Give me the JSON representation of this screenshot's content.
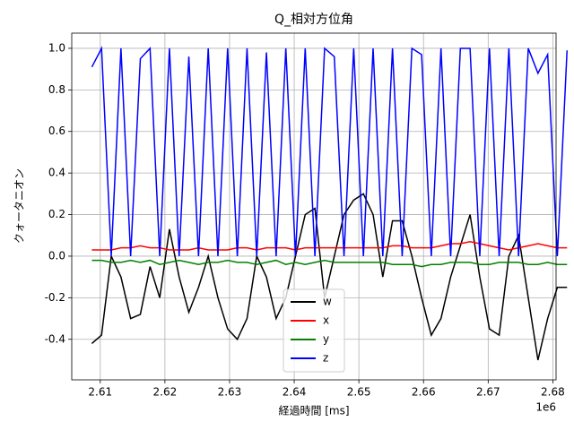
{
  "chart_data": {
    "type": "line",
    "title": "Q_相対方位角",
    "xlabel": "経過時間 [ms]",
    "ylabel": "クォータニオン",
    "x_offset_label": "1e6",
    "x": [
      2608700,
      2610200,
      2611700,
      2613200,
      2614700,
      2616200,
      2617700,
      2619200,
      2620700,
      2622200,
      2623700,
      2625200,
      2626700,
      2628200,
      2629700,
      2631200,
      2632700,
      2634200,
      2635700,
      2637200,
      2638700,
      2640200,
      2641700,
      2643200,
      2644700,
      2646200,
      2647700,
      2649200,
      2650700,
      2652200,
      2653700,
      2655200,
      2656700,
      2658200,
      2659700,
      2661200,
      2662700,
      2664200,
      2665700,
      2667200,
      2668700,
      2670200,
      2671700,
      2673200,
      2674700,
      2676200,
      2677700,
      2679200,
      2680700,
      2682200
    ],
    "series": [
      {
        "name": "w",
        "color": "#000000",
        "values": [
          -0.42,
          -0.38,
          0.0,
          -0.1,
          -0.3,
          -0.28,
          -0.05,
          -0.2,
          0.13,
          -0.1,
          -0.27,
          -0.15,
          0.0,
          -0.2,
          -0.35,
          -0.4,
          -0.3,
          0.0,
          -0.1,
          -0.3,
          -0.2,
          0.0,
          0.2,
          0.23,
          -0.2,
          0.0,
          0.2,
          0.27,
          0.3,
          0.2,
          -0.1,
          0.17,
          0.17,
          0.0,
          -0.2,
          -0.38,
          -0.3,
          -0.1,
          0.05,
          0.2,
          -0.1,
          -0.35,
          -0.38,
          0.0,
          0.1,
          -0.2,
          -0.5,
          -0.3,
          -0.15,
          -0.15
        ]
      },
      {
        "name": "x",
        "color": "#ff0000",
        "values": [
          0.03,
          0.03,
          0.03,
          0.04,
          0.04,
          0.05,
          0.04,
          0.04,
          0.03,
          0.03,
          0.03,
          0.04,
          0.03,
          0.03,
          0.03,
          0.04,
          0.04,
          0.03,
          0.04,
          0.04,
          0.04,
          0.03,
          0.04,
          0.04,
          0.04,
          0.04,
          0.04,
          0.04,
          0.04,
          0.04,
          0.04,
          0.05,
          0.05,
          0.04,
          0.04,
          0.04,
          0.05,
          0.06,
          0.06,
          0.07,
          0.06,
          0.05,
          0.04,
          0.03,
          0.04,
          0.05,
          0.06,
          0.05,
          0.04,
          0.04
        ]
      },
      {
        "name": "y",
        "color": "#008000",
        "values": [
          -0.02,
          -0.02,
          -0.03,
          -0.03,
          -0.02,
          -0.03,
          -0.02,
          -0.04,
          -0.03,
          -0.02,
          -0.03,
          -0.04,
          -0.03,
          -0.03,
          -0.02,
          -0.03,
          -0.03,
          -0.04,
          -0.03,
          -0.02,
          -0.04,
          -0.03,
          -0.04,
          -0.03,
          -0.02,
          -0.03,
          -0.03,
          -0.03,
          -0.03,
          -0.03,
          -0.03,
          -0.04,
          -0.04,
          -0.04,
          -0.05,
          -0.04,
          -0.04,
          -0.03,
          -0.03,
          -0.03,
          -0.04,
          -0.04,
          -0.03,
          -0.03,
          -0.03,
          -0.04,
          -0.04,
          -0.03,
          -0.04,
          -0.04
        ]
      },
      {
        "name": "z",
        "color": "#0000ff",
        "values": [
          0.91,
          1.0,
          0.0,
          1.0,
          0.0,
          0.95,
          1.0,
          0.0,
          1.0,
          0.0,
          0.96,
          0.0,
          1.0,
          0.0,
          1.0,
          0.0,
          1.0,
          0.0,
          0.98,
          0.0,
          1.0,
          0.0,
          1.0,
          0.0,
          1.0,
          0.96,
          0.0,
          1.0,
          0.0,
          1.0,
          0.0,
          1.0,
          0.0,
          1.0,
          0.97,
          0.0,
          1.0,
          0.0,
          1.0,
          1.0,
          0.0,
          1.0,
          0.0,
          1.0,
          0.0,
          1.0,
          0.88,
          0.97,
          0.0,
          0.99
        ]
      }
    ],
    "xlim": [
      2605590,
      2680500
    ],
    "ylim": [
      -0.595,
      1.073
    ],
    "xticks": [
      {
        "value": 2610000,
        "label": "2.61"
      },
      {
        "value": 2620000,
        "label": "2.62"
      },
      {
        "value": 2630000,
        "label": "2.63"
      },
      {
        "value": 2640000,
        "label": "2.64"
      },
      {
        "value": 2650000,
        "label": "2.65"
      },
      {
        "value": 2660000,
        "label": "2.66"
      },
      {
        "value": 2670000,
        "label": "2.67"
      },
      {
        "value": 2680000,
        "label": "2.68"
      }
    ],
    "yticks": [
      -0.4,
      -0.2,
      {
        "value": 0,
        "label": "0.0"
      },
      0.2,
      0.4,
      0.6,
      0.8,
      {
        "value": 1,
        "label": "1.0"
      }
    ],
    "grid": true,
    "legend": "lower center"
  }
}
